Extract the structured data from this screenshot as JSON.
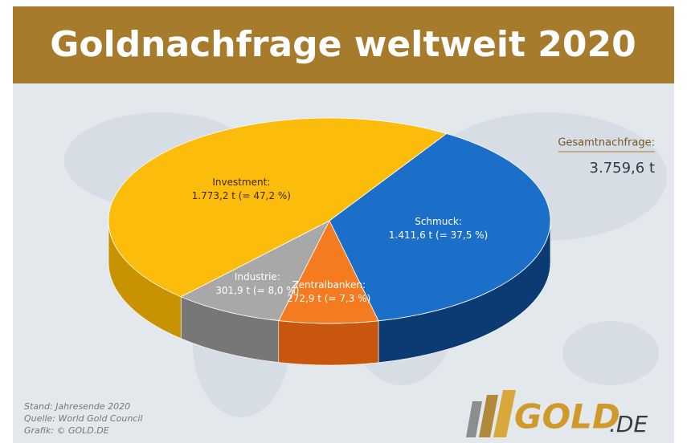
{
  "chart_data": {
    "type": "pie",
    "title": "Goldnachfrage weltweit 2020",
    "unit": "t",
    "categories": [
      "Schmuck:",
      "Zentralbanken:",
      "Industrie:",
      "Investment:"
    ],
    "values": [
      1411.6,
      272.9,
      301.9,
      1773.2
    ],
    "value_labels": [
      "1.411,6 t (= 37,5 %)",
      "272,9 t (= 7,3 %)",
      "301,9 t (= 8,0 %)",
      "1.773,2 t (= 47,2 %)"
    ],
    "colors": [
      "#1c6fc8",
      "#f47b20",
      "#a8a8a8",
      "#fcbc0c"
    ],
    "side_colors": [
      "#0c3a73",
      "#c8560c",
      "#777777",
      "#c99200"
    ],
    "total_label": "Gesamtnachfrage:",
    "total": "3.759,6 t",
    "notes": [
      "Stand: Jahresende 2020",
      "Quelle: World Gold Council",
      "Grafik: © GOLD.DE"
    ],
    "logo": {
      "main": "GOLD",
      "suffix": ".DE"
    }
  }
}
